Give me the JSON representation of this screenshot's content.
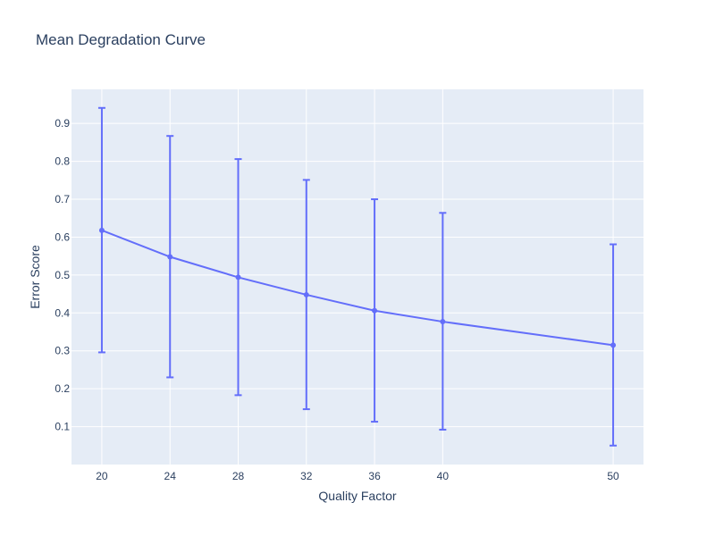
{
  "chart_data": {
    "type": "line",
    "title": "Mean Degradation Curve",
    "xlabel": "Quality Factor",
    "ylabel": "Error Score",
    "x": [
      20,
      24,
      28,
      32,
      36,
      40,
      50
    ],
    "x_tick_labels": [
      "20",
      "24",
      "28",
      "32",
      "36",
      "40",
      "50"
    ],
    "y_ticks": [
      0.1,
      0.2,
      0.3,
      0.4,
      0.5,
      0.6,
      0.7,
      0.8,
      0.9
    ],
    "y_tick_labels": [
      "0.1",
      "0.2",
      "0.3",
      "0.4",
      "0.5",
      "0.6",
      "0.7",
      "0.8",
      "0.9"
    ],
    "ylim": [
      0,
      0.99
    ],
    "grid": true,
    "series": [
      {
        "values": [
          0.618,
          0.548,
          0.494,
          0.448,
          0.406,
          0.377,
          0.315
        ],
        "error_upper": [
          0.941,
          0.867,
          0.806,
          0.751,
          0.7,
          0.664,
          0.581
        ],
        "error_lower": [
          0.296,
          0.23,
          0.183,
          0.146,
          0.113,
          0.092,
          0.05
        ],
        "color": "#636efa"
      }
    ],
    "plot_background": "#e5ecf6",
    "grid_color": "#ffffff"
  }
}
